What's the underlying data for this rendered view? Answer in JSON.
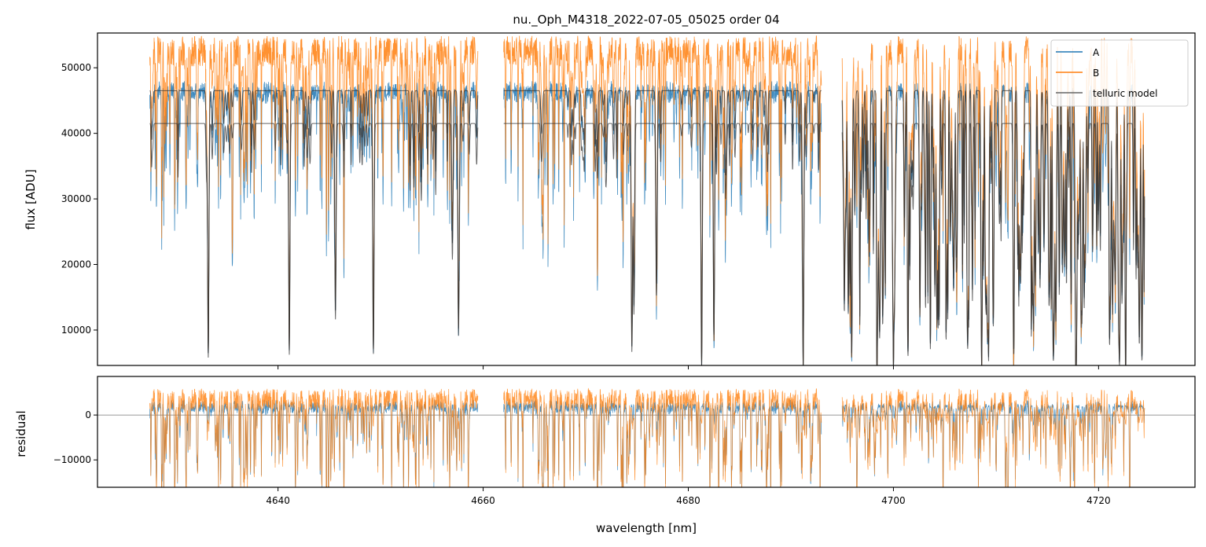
{
  "chart_data": {
    "type": "line",
    "title": "nu._Oph_M4318_2022-07-05_05025  order 04",
    "xlabel": "wavelength [nm]",
    "panels": [
      {
        "name": "main",
        "ylabel": "flux [ADU]",
        "ylim": [
          4600,
          55300
        ],
        "yticks": [
          10000,
          20000,
          30000,
          40000,
          50000
        ],
        "ytick_labels": [
          "10000",
          "20000",
          "30000",
          "40000",
          "50000"
        ]
      },
      {
        "name": "residual",
        "ylabel": "residual",
        "ylim": [
          -16100,
          8600
        ],
        "yticks": [
          -10000,
          0
        ],
        "ytick_labels": [
          "−10000",
          "0"
        ]
      }
    ],
    "xlim": [
      4622.4,
      4729.4
    ],
    "xticks": [
      4640,
      4660,
      4680,
      4700,
      4720
    ],
    "xtick_labels": [
      "4640",
      "4660",
      "4680",
      "4700",
      "4720"
    ],
    "legend": {
      "placement": "top-right",
      "entries": [
        "A",
        "B",
        "telluric model"
      ]
    },
    "colors": {
      "A": "#1f77b4",
      "B": "#ff7f0e",
      "model": "#333333",
      "zero": "#777777"
    },
    "segments": [
      [
        4627.5,
        4659.5
      ],
      [
        4662.0,
        4693.0
      ],
      [
        4695.0,
        4724.5
      ]
    ],
    "model_continuum": {
      "upper": 46500,
      "lower": 41500
    },
    "deep_lines": [
      [
        4633.2,
        0.86
      ],
      [
        4641.1,
        0.85
      ],
      [
        4645.6,
        0.72
      ],
      [
        4649.3,
        0.84
      ],
      [
        4657.0,
        0.5
      ],
      [
        4657.6,
        0.78
      ],
      [
        4674.5,
        0.82
      ],
      [
        4674.7,
        0.7
      ],
      [
        4676.9,
        0.62
      ],
      [
        4681.3,
        0.9
      ],
      [
        4682.5,
        0.8
      ],
      [
        4691.2,
        0.9
      ],
      [
        4695.6,
        0.7
      ],
      [
        4700.0,
        0.9
      ],
      [
        4708.6,
        0.9
      ],
      [
        4717.8,
        0.9
      ]
    ],
    "series_note": "A and B traces and residuals are spectra sampled over each segment"
  }
}
